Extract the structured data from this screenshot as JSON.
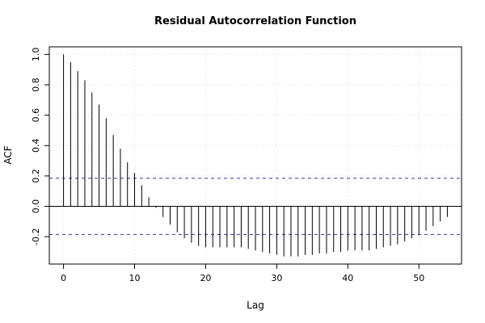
{
  "chart_data": {
    "type": "bar",
    "title": "Residual Autocorrelation Function",
    "xlabel": "Lag",
    "ylabel": "ACF",
    "xlim": [
      -2,
      56
    ],
    "ylim": [
      -0.38,
      1.05
    ],
    "x_ticks": [
      0,
      10,
      20,
      30,
      40,
      50
    ],
    "y_ticks": [
      -0.2,
      0.0,
      0.2,
      0.4,
      0.6,
      0.8,
      1.0
    ],
    "x_tick_labels": [
      "0",
      "10",
      "20",
      "30",
      "40",
      "50"
    ],
    "y_tick_labels": [
      "-0.2",
      "0.0",
      "0.2",
      "0.4",
      "0.6",
      "0.8",
      "1.0"
    ],
    "grid": true,
    "confidence_bounds": [
      0.185,
      -0.185
    ],
    "colors": {
      "bars": "#000000",
      "bounds": "#3333aa",
      "grid": "#d9d9d9",
      "zero_line": "#000000"
    },
    "lags": [
      0,
      1,
      2,
      3,
      4,
      5,
      6,
      7,
      8,
      9,
      10,
      11,
      12,
      13,
      14,
      15,
      16,
      17,
      18,
      19,
      20,
      21,
      22,
      23,
      24,
      25,
      26,
      27,
      28,
      29,
      30,
      31,
      32,
      33,
      34,
      35,
      36,
      37,
      38,
      39,
      40,
      41,
      42,
      43,
      44,
      45,
      46,
      47,
      48,
      49,
      50,
      51,
      52,
      53,
      54
    ],
    "acf": [
      1.0,
      0.95,
      0.89,
      0.83,
      0.75,
      0.67,
      0.58,
      0.47,
      0.38,
      0.29,
      0.22,
      0.14,
      0.06,
      -0.01,
      -0.07,
      -0.12,
      -0.17,
      -0.21,
      -0.24,
      -0.26,
      -0.27,
      -0.27,
      -0.27,
      -0.27,
      -0.27,
      -0.27,
      -0.28,
      -0.29,
      -0.3,
      -0.31,
      -0.32,
      -0.33,
      -0.33,
      -0.33,
      -0.32,
      -0.32,
      -0.31,
      -0.31,
      -0.3,
      -0.3,
      -0.29,
      -0.29,
      -0.29,
      -0.29,
      -0.28,
      -0.27,
      -0.26,
      -0.25,
      -0.23,
      -0.21,
      -0.19,
      -0.16,
      -0.13,
      -0.1,
      -0.07
    ]
  }
}
